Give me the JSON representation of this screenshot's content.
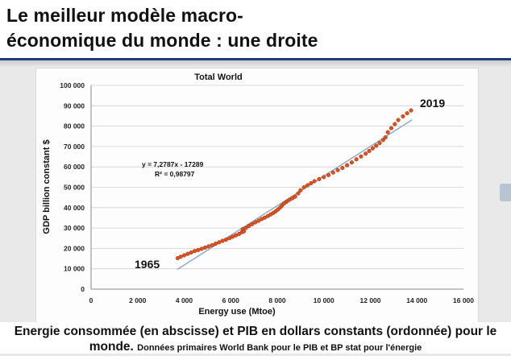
{
  "slide": {
    "title_line1": "Le meilleur modèle macro-",
    "title_line2": "économique du monde : une droite",
    "caption_main_1": "Energie consommée (en abscisse) et PIB en dollars constants (ordonnée) pour le",
    "caption_main_2": "monde.",
    "caption_small": "Données primaires World Bank pour le PIB et BP stat pour l'énergie"
  },
  "chart_data": {
    "type": "scatter",
    "title": "Total World",
    "xlabel": "Energy use (Mtoe)",
    "ylabel": "GDP billion constant $",
    "xlim": [
      0,
      16000
    ],
    "ylim": [
      0,
      100000
    ],
    "x_ticks": [
      "0",
      "2 000",
      "4 000",
      "6 000",
      "8 000",
      "10 000",
      "12 000",
      "14 000",
      "16 000"
    ],
    "y_ticks": [
      "0",
      "10 000",
      "20 000",
      "30 000",
      "40 000",
      "50 000",
      "60 000",
      "70 000",
      "80 000",
      "90 000",
      "100 000"
    ],
    "grid": true,
    "annotations": {
      "start_label": "1965",
      "end_label": "2019",
      "equation": "y = 7,2787x - 17289",
      "r2": "R² = 0,98797"
    },
    "trendline": {
      "slope": 7.2787,
      "intercept": -17289,
      "x_range": [
        3700,
        13800
      ]
    },
    "points": [
      [
        3720,
        15200
      ],
      [
        3850,
        15900
      ],
      [
        4000,
        16600
      ],
      [
        4150,
        17300
      ],
      [
        4300,
        18000
      ],
      [
        4450,
        18700
      ],
      [
        4600,
        19200
      ],
      [
        4750,
        19800
      ],
      [
        4900,
        20400
      ],
      [
        5050,
        21000
      ],
      [
        5200,
        21600
      ],
      [
        5350,
        22300
      ],
      [
        5500,
        23000
      ],
      [
        5650,
        23700
      ],
      [
        5800,
        24300
      ],
      [
        5950,
        25000
      ],
      [
        6080,
        25700
      ],
      [
        6220,
        26400
      ],
      [
        6360,
        27100
      ],
      [
        6480,
        28000
      ],
      [
        6520,
        29500
      ],
      [
        6560,
        28300
      ],
      [
        6650,
        30000
      ],
      [
        6780,
        31000
      ],
      [
        6920,
        31900
      ],
      [
        7060,
        32800
      ],
      [
        7200,
        33600
      ],
      [
        7330,
        34400
      ],
      [
        7460,
        35100
      ],
      [
        7600,
        35900
      ],
      [
        7720,
        36700
      ],
      [
        7830,
        37400
      ],
      [
        7930,
        38200
      ],
      [
        8030,
        39100
      ],
      [
        8120,
        40000
      ],
      [
        8200,
        41000
      ],
      [
        8290,
        42000
      ],
      [
        8400,
        42900
      ],
      [
        8520,
        43800
      ],
      [
        8650,
        44600
      ],
      [
        8770,
        45400
      ],
      [
        8900,
        47000
      ],
      [
        9000,
        48500
      ],
      [
        9150,
        50000
      ],
      [
        9300,
        51000
      ],
      [
        9450,
        52000
      ],
      [
        9600,
        53000
      ],
      [
        9800,
        54000
      ],
      [
        10000,
        55000
      ],
      [
        10200,
        56000
      ],
      [
        10400,
        57200
      ],
      [
        10600,
        58400
      ],
      [
        10800,
        59500
      ],
      [
        11000,
        60800
      ],
      [
        11200,
        62200
      ],
      [
        11400,
        63700
      ],
      [
        11600,
        65100
      ],
      [
        11800,
        66500
      ],
      [
        11950,
        67800
      ],
      [
        12100,
        69100
      ],
      [
        12250,
        70400
      ],
      [
        12400,
        71700
      ],
      [
        12550,
        73200
      ],
      [
        12650,
        74500
      ],
      [
        12750,
        77000
      ],
      [
        12900,
        79000
      ],
      [
        13050,
        81000
      ],
      [
        13200,
        83000
      ],
      [
        13400,
        84800
      ],
      [
        13580,
        86300
      ],
      [
        13750,
        87700
      ]
    ],
    "point_color": "#e2521b",
    "point_edge": "#8c2b0c",
    "trend_color": "#8aa2c4"
  }
}
